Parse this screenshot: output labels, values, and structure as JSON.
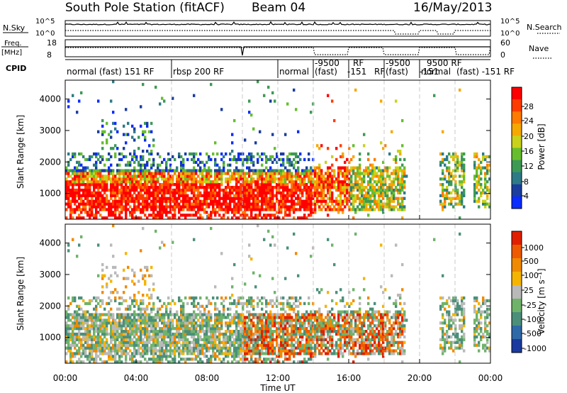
{
  "header": {
    "title": "South Pole Station (fitACF)",
    "beam": "Beam 04",
    "date": "16/May/2013"
  },
  "nsky_panel": {
    "left_label": "N.Sky",
    "right_label": "N.Search",
    "left_ticks": [
      "10^5",
      "10^0"
    ],
    "right_ticks": [
      "10^5",
      "10^0"
    ]
  },
  "freq_panel": {
    "left_label_line1": "Freq.",
    "left_label_line2": "[MHz]",
    "right_label": "Nave",
    "left_ticks": [
      "18",
      "8"
    ],
    "right_ticks": [
      "60",
      "0"
    ]
  },
  "cpid": {
    "label": "CPID",
    "segments": [
      {
        "start_hour": 0.0,
        "text": "normal (fast) 151 RF"
      },
      {
        "start_hour": 6.0,
        "text": "rbsp 200 RF"
      },
      {
        "start_hour": 12.0,
        "text": "normal"
      },
      {
        "start_hour": 14.0,
        "text": "-9500"
      },
      {
        "start_hour": 14.0,
        "text": "(fast)"
      },
      {
        "start_hour": 16.0,
        "text": "RF"
      },
      {
        "start_hour": 16.0,
        "text": "-151"
      },
      {
        "start_hour": 16.0,
        "text": "RF"
      },
      {
        "start_hour": 18.0,
        "text": "-9500"
      },
      {
        "start_hour": 18.0,
        "text": "(fast)"
      },
      {
        "start_hour": 20.0,
        "text": "9500 RF"
      },
      {
        "start_hour": 20.0,
        "text": "-151"
      },
      {
        "start_hour": 20.0,
        "text": "normal"
      },
      {
        "start_hour": 22.0,
        "text": "(fast) -151 RF"
      }
    ]
  },
  "chart_data": [
    {
      "type": "heatmap",
      "panel": "power",
      "ylabel": "Slant Range [km]",
      "xlabel": "",
      "ylim": [
        180,
        4600
      ],
      "xlim_hours": [
        0,
        24
      ],
      "yticks": [
        1000,
        2000,
        3000,
        4000
      ],
      "xtick_labels": [
        "00:00",
        "04:00",
        "08:00",
        "12:00",
        "16:00",
        "20:00",
        "00:00"
      ],
      "colorbar": {
        "label": "Power [dB]",
        "ticks": [
          "28",
          "24",
          "20",
          "16",
          "12",
          "8",
          "4"
        ],
        "colors": [
          "#0a2cff",
          "#1a3d9e",
          "#2e7a86",
          "#3c9a55",
          "#66be2e",
          "#c9d21a",
          "#f5a800",
          "#ff7a00",
          "#ff3c00",
          "#ff0000"
        ]
      }
    },
    {
      "type": "heatmap",
      "panel": "velocity",
      "ylabel": "Slant Range [km]",
      "xlabel": "Time UT",
      "ylim": [
        180,
        4600
      ],
      "xlim_hours": [
        0,
        24
      ],
      "yticks": [
        1000,
        2000,
        3000,
        4000
      ],
      "xtick_labels": [
        "00:00",
        "04:00",
        "08:00",
        "12:00",
        "16:00",
        "20:00",
        "00:00"
      ],
      "colorbar": {
        "label": "Velocity [m s⁻¹]",
        "ticks": [
          "1000",
          "500",
          "100",
          "25",
          "-25",
          "-100",
          "-500",
          "-1000"
        ],
        "colors": [
          "#1a3aa0",
          "#2e6aa8",
          "#4b8f7a",
          "#6fb36a",
          "#b9b9b9",
          "#f5b400",
          "#f08a00",
          "#ee5a00",
          "#e02000"
        ]
      }
    }
  ]
}
